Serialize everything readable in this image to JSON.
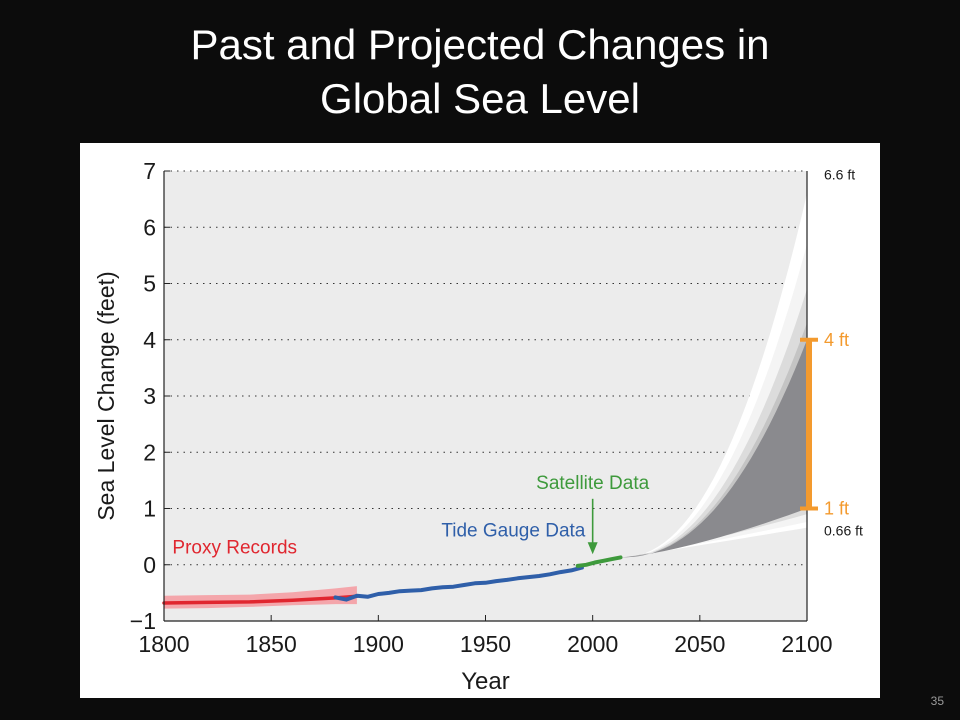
{
  "slide": {
    "title_line1": "Past and Projected Changes in",
    "title_line2": "Global Sea Level",
    "page_number": "35"
  },
  "chart_data": {
    "type": "line",
    "xlabel": "Year",
    "ylabel": "Sea Level Change (feet)",
    "xlim": [
      1800,
      2100
    ],
    "ylim": [
      -1,
      7
    ],
    "x_ticks": [
      "1800",
      "1850",
      "1900",
      "1950",
      "2000",
      "2050",
      "2100"
    ],
    "y_ticks": [
      "−1",
      "0",
      "1",
      "2",
      "3",
      "4",
      "5",
      "6",
      "7"
    ],
    "grid": "horizontal dotted",
    "series": [
      {
        "name": "Proxy Records",
        "color": "#e0262f",
        "band_color": "#f4a6ab",
        "x": [
          1800,
          1820,
          1840,
          1860,
          1880,
          1890
        ],
        "y": [
          -0.68,
          -0.67,
          -0.66,
          -0.63,
          -0.59,
          -0.56
        ],
        "band_low": [
          -0.78,
          -0.77,
          -0.75,
          -0.72,
          -0.7,
          -0.7
        ],
        "band_high": [
          -0.55,
          -0.54,
          -0.53,
          -0.49,
          -0.42,
          -0.38
        ]
      },
      {
        "name": "Tide Gauge Data",
        "color": "#2f5fa9",
        "x": [
          1880,
          1885,
          1890,
          1895,
          1900,
          1905,
          1910,
          1915,
          1920,
          1925,
          1930,
          1935,
          1940,
          1945,
          1950,
          1955,
          1960,
          1965,
          1970,
          1975,
          1980,
          1985,
          1990,
          1995
        ],
        "y": [
          -0.58,
          -0.62,
          -0.55,
          -0.57,
          -0.52,
          -0.5,
          -0.47,
          -0.46,
          -0.45,
          -0.42,
          -0.4,
          -0.39,
          -0.36,
          -0.33,
          -0.32,
          -0.29,
          -0.27,
          -0.24,
          -0.22,
          -0.2,
          -0.17,
          -0.13,
          -0.1,
          -0.05
        ]
      },
      {
        "name": "Satellite Data",
        "color": "#3e9a3c",
        "x": [
          1993,
          1997,
          2001,
          2005,
          2009,
          2013
        ],
        "y": [
          -0.02,
          0.0,
          0.04,
          0.07,
          0.1,
          0.13
        ]
      }
    ],
    "projections": [
      {
        "label": "6.6 ft",
        "value": 6.6
      },
      {
        "label": "4 ft",
        "value": 4
      },
      {
        "label": "1 ft",
        "value": 1
      },
      {
        "label": "0.66 ft",
        "value": 0.66
      }
    ],
    "projection_start": [
      2013,
      0.13
    ],
    "likely_range": {
      "low": 1,
      "high": 4,
      "color": "#f39a2e"
    },
    "annotations": [
      {
        "text": "Satellite Data",
        "x": 2000,
        "y": 1.35,
        "color": "#3e9a3c"
      },
      {
        "text": "Tide Gauge Data",
        "x": 1963,
        "y": 0.5,
        "color": "#2f5fa9"
      },
      {
        "text": "Proxy Records",
        "x": 1833,
        "y": 0.2,
        "color": "#e0262f"
      }
    ]
  }
}
